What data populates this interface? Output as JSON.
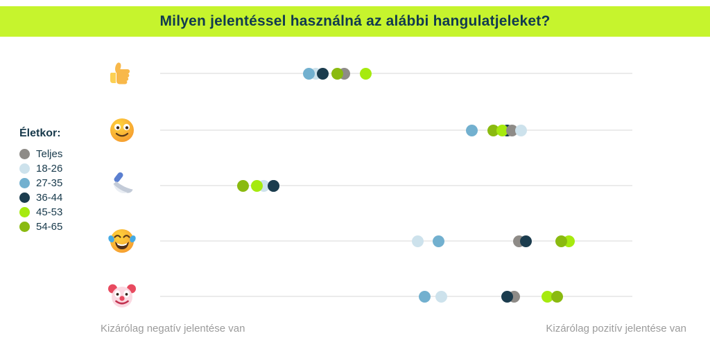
{
  "title": "Milyen jelentéssel használná az alábbi hangulatjeleket?",
  "legend": {
    "heading": "Életkor:",
    "items": [
      {
        "label": "Teljes",
        "color": "#8e8b87"
      },
      {
        "label": "18-26",
        "color": "#cde2ec"
      },
      {
        "label": "27-35",
        "color": "#72b0cf"
      },
      {
        "label": "36-44",
        "color": "#1b3c4e"
      },
      {
        "label": "45-53",
        "color": "#a6ea0f"
      },
      {
        "label": "54-65",
        "color": "#8aba10"
      }
    ]
  },
  "footer": {
    "left_label": "Kizárólag negatív jelentése van",
    "right_label": "Kizárólag pozitív jelentése van"
  },
  "colors": {
    "banner": "#c6f42d",
    "title_text": "#113a50",
    "legend_text": "#16384a",
    "row_line": "#ebebeb",
    "footer_text": "#9b9b9b"
  },
  "chart_data": {
    "type": "scatter",
    "subtype": "emoji-sentiment-dot-plot",
    "title": "Milyen jelentéssel használná az alábbi hangulatjeleket?",
    "x_axis": {
      "min": 0,
      "max": 100,
      "left_anchor_label": "Kizárólag negatív jelentése van",
      "right_anchor_label": "Kizárólag pozitív jelentése van",
      "gridlines": false
    },
    "legend_title": "Életkor:",
    "groups": [
      "Teljes",
      "18-26",
      "27-35",
      "36-44",
      "45-53",
      "54-65"
    ],
    "rows": [
      {
        "emoji_name": "thumbs-up",
        "emoji_char": "👍",
        "dots": [
          {
            "group": "18-26",
            "value": 33
          },
          {
            "group": "27-35",
            "value": 31.5
          },
          {
            "group": "36-44",
            "value": 34.5
          },
          {
            "group": "Teljes",
            "value": 39
          },
          {
            "group": "54-65",
            "value": 37.5
          },
          {
            "group": "45-53",
            "value": 43.5
          }
        ]
      },
      {
        "emoji_name": "slightly-smiling-face",
        "emoji_char": "🙂",
        "dots": [
          {
            "group": "36-44",
            "value": 73.5
          },
          {
            "group": "27-35",
            "value": 66
          },
          {
            "group": "54-65",
            "value": 70.5
          },
          {
            "group": "45-53",
            "value": 72.5
          },
          {
            "group": "Teljes",
            "value": 74.5
          },
          {
            "group": "18-26",
            "value": 76.5
          }
        ]
      },
      {
        "emoji_name": "kitchen-knife",
        "emoji_char": "🔪",
        "dots": [
          {
            "group": "27-35",
            "value": 24
          },
          {
            "group": "Teljes",
            "value": 24
          },
          {
            "group": "18-26",
            "value": 22
          },
          {
            "group": "54-65",
            "value": 17.5
          },
          {
            "group": "45-53",
            "value": 20.5
          },
          {
            "group": "36-44",
            "value": 24
          }
        ]
      },
      {
        "emoji_name": "face-with-tears-of-joy",
        "emoji_char": "😂",
        "dots": [
          {
            "group": "18-26",
            "value": 54.5
          },
          {
            "group": "27-35",
            "value": 59
          },
          {
            "group": "Teljes",
            "value": 76
          },
          {
            "group": "36-44",
            "value": 77.5
          },
          {
            "group": "45-53",
            "value": 86.5
          },
          {
            "group": "54-65",
            "value": 85
          }
        ]
      },
      {
        "emoji_name": "clown-face",
        "emoji_char": "🤡",
        "dots": [
          {
            "group": "27-35",
            "value": 56
          },
          {
            "group": "18-26",
            "value": 59.5
          },
          {
            "group": "Teljes",
            "value": 75
          },
          {
            "group": "36-44",
            "value": 73.5
          },
          {
            "group": "45-53",
            "value": 82
          },
          {
            "group": "54-65",
            "value": 84
          }
        ]
      }
    ]
  }
}
